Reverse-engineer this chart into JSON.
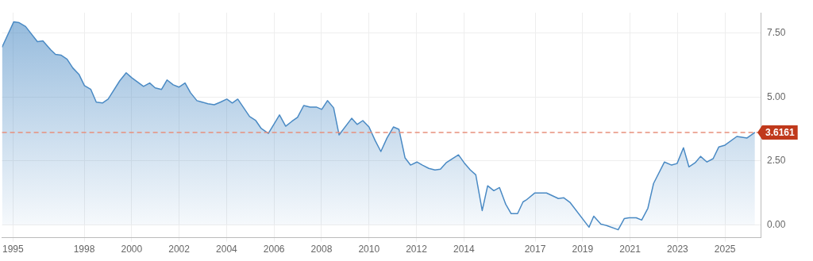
{
  "chart_data": {
    "type": "area",
    "x": [
      1994.54,
      1995.03,
      1995.26,
      1995.53,
      1996.03,
      1996.26,
      1996.59,
      1996.79,
      1997.02,
      1997.28,
      1997.52,
      1997.78,
      1998.01,
      1998.28,
      1998.51,
      1998.77,
      1999.01,
      1999.5,
      1999.77,
      2000.0,
      2000.26,
      2000.5,
      2000.76,
      2000.99,
      2001.26,
      2001.49,
      2001.75,
      2001.99,
      2002.25,
      2002.48,
      2002.75,
      2003.21,
      2003.48,
      2003.74,
      2004.01,
      2004.24,
      2004.47,
      2004.97,
      2005.23,
      2005.46,
      2005.76,
      2006.03,
      2006.23,
      2006.49,
      2006.75,
      2006.99,
      2007.25,
      2007.52,
      2007.78,
      2008.01,
      2008.25,
      2008.51,
      2008.74,
      2009.27,
      2009.5,
      2009.74,
      2010.0,
      2010.26,
      2010.5,
      2010.76,
      2011.03,
      2011.26,
      2011.52,
      2011.75,
      2012.02,
      2012.25,
      2012.52,
      2012.78,
      2013.01,
      2013.25,
      2013.51,
      2013.77,
      2014.01,
      2014.27,
      2014.5,
      2014.77,
      2015.0,
      2015.26,
      2015.5,
      2015.76,
      2015.99,
      2016.26,
      2016.49,
      2016.62,
      2016.99,
      2017.48,
      2017.98,
      2018.21,
      2018.48,
      2019.27,
      2019.47,
      2019.77,
      2020.03,
      2020.5,
      2020.76,
      2020.96,
      2021.26,
      2021.49,
      2021.75,
      2021.99,
      2022.45,
      2022.75,
      2022.98,
      2023.25,
      2023.48,
      2023.74,
      2023.97,
      2024.24,
      2024.5,
      2024.74,
      2025.0,
      2025.5,
      2025.93,
      2026.26
    ],
    "series": [
      {
        "color": "#4a8ac4",
        "values": [
          6.95,
          7.94,
          7.91,
          7.76,
          7.17,
          7.2,
          6.85,
          6.67,
          6.64,
          6.48,
          6.14,
          5.89,
          5.45,
          5.3,
          4.8,
          4.77,
          4.92,
          5.64,
          5.95,
          5.76,
          5.58,
          5.42,
          5.55,
          5.36,
          5.3,
          5.67,
          5.48,
          5.39,
          5.55,
          5.17,
          4.86,
          4.74,
          4.7,
          4.8,
          4.92,
          4.77,
          4.92,
          4.24,
          4.08,
          3.77,
          3.58,
          3.99,
          4.3,
          3.86,
          4.05,
          4.21,
          4.67,
          4.61,
          4.61,
          4.52,
          4.86,
          4.58,
          3.52,
          4.17,
          3.93,
          4.08,
          3.83,
          3.3,
          2.87,
          3.4,
          3.83,
          3.74,
          2.62,
          2.34,
          2.46,
          2.34,
          2.21,
          2.15,
          2.18,
          2.43,
          2.59,
          2.74,
          2.43,
          2.15,
          1.96,
          0.56,
          1.53,
          1.34,
          1.46,
          0.81,
          0.44,
          0.44,
          0.9,
          0.97,
          1.25,
          1.25,
          1.03,
          1.06,
          0.87,
          -0.09,
          0.34,
          0.03,
          -0.03,
          -0.19,
          0.25,
          0.28,
          0.28,
          0.19,
          0.65,
          1.62,
          2.46,
          2.34,
          2.4,
          3.02,
          2.27,
          2.43,
          2.68,
          2.46,
          2.59,
          3.05,
          3.12,
          3.46,
          3.4,
          3.62
        ]
      }
    ],
    "xlim": [
      1994.54,
      2026.5
    ],
    "xticks": [
      1995,
      1998,
      2000,
      2002,
      2004,
      2006,
      2008,
      2010,
      2012,
      2014,
      2017,
      2019,
      2021,
      2023,
      2025
    ],
    "ylim": [
      -0.5,
      8.3
    ],
    "yticks": [
      {
        "value": 0,
        "label": "0.00"
      },
      {
        "value": 2.5,
        "label": "2.50"
      },
      {
        "value": 5,
        "label": "5.00"
      },
      {
        "value": 7.5,
        "label": "7.50"
      }
    ],
    "ref_lines": [
      {
        "axis": "y",
        "value": 3.6161,
        "label": "3.6161",
        "color": "#e8907c",
        "line_style": "dashed"
      }
    ],
    "grid": true,
    "legend": false,
    "marker": "none"
  }
}
